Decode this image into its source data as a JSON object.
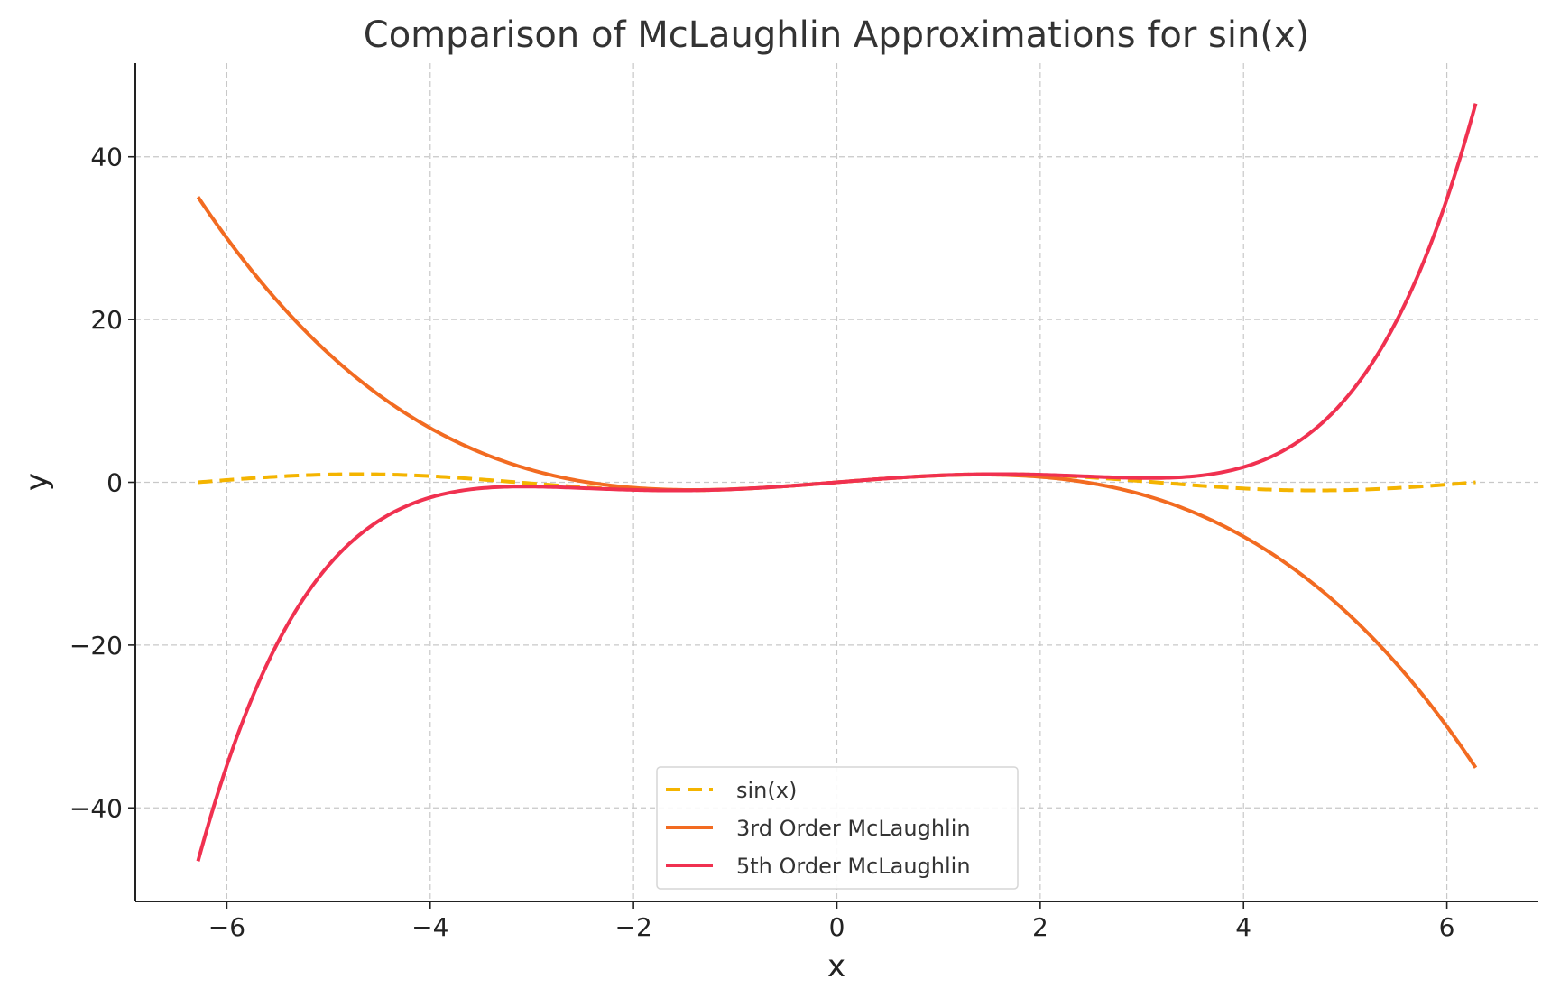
{
  "chart_data": {
    "type": "line",
    "title": "Comparison of McLaughlin Approximations for sin(x)",
    "xlabel": "x",
    "ylabel": "y",
    "xlim": [
      -6.9,
      6.9
    ],
    "ylim": [
      -51.5,
      51.5
    ],
    "xticks": [
      -6,
      -4,
      -2,
      0,
      2,
      4,
      6
    ],
    "xtick_labels": [
      "−6",
      "−4",
      "−2",
      "0",
      "2",
      "4",
      "6"
    ],
    "yticks": [
      -40,
      -20,
      0,
      20,
      40
    ],
    "ytick_labels": [
      "−40",
      "−20",
      "0",
      "20",
      "40"
    ],
    "grid": true,
    "legend_position": "bottom-center",
    "x_domain": [
      -6.2832,
      6.2832
    ],
    "series": [
      {
        "name": "sin(x)",
        "function": "sin(x)",
        "color": "#F4B400",
        "style": "dashed",
        "samples": [
          {
            "x": -4.71,
            "y": 1.0
          },
          {
            "x": -1.57,
            "y": -1.0
          },
          {
            "x": 0,
            "y": 0
          },
          {
            "x": 1.57,
            "y": 1.0
          },
          {
            "x": 4.71,
            "y": -1.0
          }
        ]
      },
      {
        "name": "3rd Order McLaughlin",
        "function": "x - x^3/6",
        "color": "#F26B21",
        "style": "solid",
        "samples": [
          {
            "x": -6.28,
            "y": 35.06
          },
          {
            "x": -4,
            "y": 6.67
          },
          {
            "x": 0,
            "y": 0
          },
          {
            "x": 4,
            "y": -6.67
          },
          {
            "x": 6.28,
            "y": -35.06
          }
        ]
      },
      {
        "name": "5th Order McLaughlin",
        "function": "x - x^3/6 + x^5/120",
        "color": "#F03150",
        "style": "solid",
        "samples": [
          {
            "x": -6.28,
            "y": -46.54
          },
          {
            "x": -4,
            "y": -1.87
          },
          {
            "x": 0,
            "y": 0
          },
          {
            "x": 4,
            "y": 1.87
          },
          {
            "x": 6.28,
            "y": 46.54
          }
        ]
      }
    ]
  }
}
